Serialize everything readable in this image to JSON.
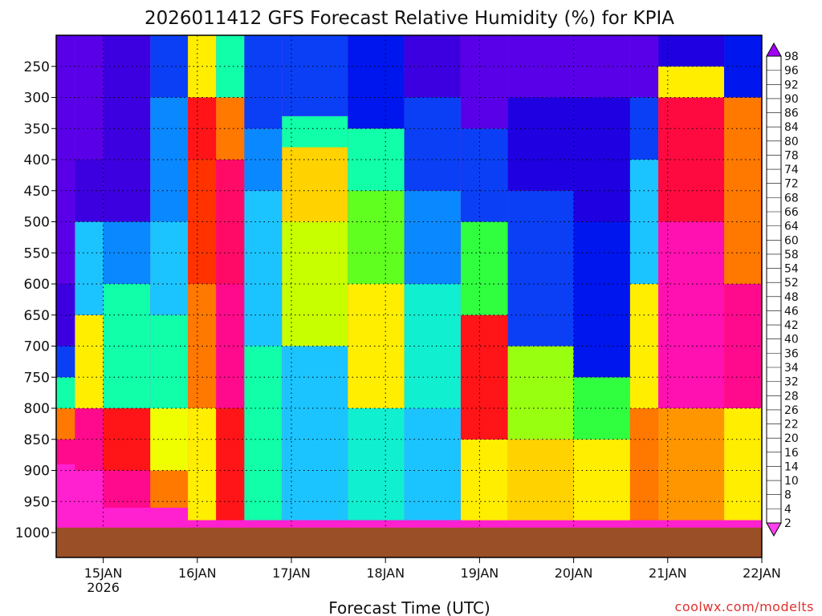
{
  "chart_data": {
    "type": "heatmap",
    "title": "2026011412 GFS Forecast Relative Humidity (%) for KPIA",
    "xlabel": "Forecast Time (UTC)",
    "ylabel": "",
    "credit": "coolwx.com/modelts",
    "x_ticks": [
      "15JAN",
      "16JAN",
      "17JAN",
      "18JAN",
      "19JAN",
      "20JAN",
      "21JAN",
      "22JAN"
    ],
    "x_subtick": "2026",
    "y_ticks": [
      "250",
      "300",
      "350",
      "400",
      "450",
      "500",
      "550",
      "600",
      "650",
      "700",
      "750",
      "800",
      "850",
      "900",
      "950",
      "1000"
    ],
    "y_values_hpa": [
      250,
      300,
      350,
      400,
      450,
      500,
      550,
      600,
      650,
      700,
      750,
      800,
      850,
      900,
      950,
      1000
    ],
    "yrange_hpa": [
      200,
      1040
    ],
    "xrange_days": [
      14.5,
      22.0
    ],
    "ground_color": "#9b4f26",
    "grid": "dotted",
    "colorbar_labels": [
      "98",
      "96",
      "92",
      "90",
      "86",
      "84",
      "80",
      "78",
      "74",
      "72",
      "68",
      "66",
      "64",
      "60",
      "58",
      "54",
      "52",
      "48",
      "46",
      "42",
      "40",
      "36",
      "34",
      "32",
      "28",
      "26",
      "22",
      "20",
      "16",
      "14",
      "10",
      "8",
      "4",
      "2"
    ],
    "colorbar_colors": [
      "#a300f8",
      "#7d00f0",
      "#5a00e8",
      "#3c00e0",
      "#1e00e0",
      "#0016ef",
      "#0a3ff5",
      "#0066ff",
      "#0a88ff",
      "#1aa6ff",
      "#1cc4ff",
      "#15dcf0",
      "#10f0d0",
      "#10ffa8",
      "#20ff70",
      "#30ff40",
      "#60ff20",
      "#98ff10",
      "#c8ff00",
      "#f0ff00",
      "#ffee00",
      "#ffd200",
      "#ffb400",
      "#ff9600",
      "#ff7800",
      "#ff5a00",
      "#ff3200",
      "#ff1418",
      "#ff0a40",
      "#ff0a66",
      "#ff0a8c",
      "#ff10b0",
      "#ff20d0",
      "#ff40f0"
    ],
    "rh_bands": [
      {
        "x0": 14.5,
        "x1": 14.7,
        "p": [
          [
            960,
            4
          ],
          [
            890,
            10
          ],
          [
            850,
            30
          ],
          [
            800,
            60
          ],
          [
            750,
            80
          ],
          [
            700,
            90
          ],
          [
            600,
            95
          ]
        ]
      },
      {
        "x0": 14.7,
        "x1": 15.0,
        "p": [
          [
            960,
            5
          ],
          [
            900,
            12
          ],
          [
            800,
            40
          ],
          [
            650,
            70
          ],
          [
            500,
            90
          ],
          [
            400,
            95
          ]
        ]
      },
      {
        "x0": 15.0,
        "x1": 15.5,
        "p": [
          [
            960,
            12
          ],
          [
            900,
            20
          ],
          [
            800,
            60
          ],
          [
            600,
            75
          ],
          [
            500,
            90
          ]
        ]
      },
      {
        "x0": 15.5,
        "x1": 15.9,
        "p": [
          [
            960,
            30
          ],
          [
            900,
            45
          ],
          [
            800,
            60
          ],
          [
            650,
            70
          ],
          [
            500,
            74
          ],
          [
            300,
            80
          ]
        ]
      },
      {
        "x0": 15.9,
        "x1": 16.2,
        "p": [
          [
            980,
            40
          ],
          [
            800,
            30
          ],
          [
            600,
            22
          ],
          [
            400,
            20
          ],
          [
            300,
            40
          ]
        ]
      },
      {
        "x0": 16.2,
        "x1": 16.5,
        "p": [
          [
            980,
            20
          ],
          [
            800,
            10
          ],
          [
            600,
            14
          ],
          [
            400,
            30
          ],
          [
            300,
            60
          ]
        ]
      },
      {
        "x0": 16.5,
        "x1": 16.9,
        "p": [
          [
            980,
            60
          ],
          [
            700,
            70
          ],
          [
            450,
            75
          ],
          [
            350,
            80
          ]
        ]
      },
      {
        "x0": 16.9,
        "x1": 17.6,
        "p": [
          [
            980,
            70
          ],
          [
            700,
            46
          ],
          [
            500,
            36
          ],
          [
            380,
            60
          ],
          [
            330,
            80
          ]
        ]
      },
      {
        "x0": 17.6,
        "x1": 18.2,
        "p": [
          [
            980,
            64
          ],
          [
            800,
            40
          ],
          [
            600,
            52
          ],
          [
            450,
            62
          ],
          [
            350,
            85
          ]
        ]
      },
      {
        "x0": 18.2,
        "x1": 18.8,
        "p": [
          [
            980,
            70
          ],
          [
            800,
            64
          ],
          [
            600,
            75
          ],
          [
            450,
            80
          ],
          [
            300,
            90
          ]
        ]
      },
      {
        "x0": 18.8,
        "x1": 19.3,
        "p": [
          [
            980,
            40
          ],
          [
            850,
            20
          ],
          [
            650,
            54
          ],
          [
            500,
            80
          ],
          [
            350,
            92
          ]
        ]
      },
      {
        "x0": 19.3,
        "x1": 20.0,
        "p": [
          [
            980,
            36
          ],
          [
            850,
            48
          ],
          [
            700,
            80
          ],
          [
            450,
            86
          ],
          [
            300,
            95
          ]
        ]
      },
      {
        "x0": 20.0,
        "x1": 20.6,
        "p": [
          [
            980,
            40
          ],
          [
            850,
            54
          ],
          [
            750,
            84
          ],
          [
            500,
            88
          ],
          [
            300,
            95
          ]
        ]
      },
      {
        "x0": 20.6,
        "x1": 20.9,
        "p": [
          [
            980,
            30
          ],
          [
            800,
            40
          ],
          [
            600,
            70
          ],
          [
            400,
            80
          ],
          [
            300,
            92
          ]
        ]
      },
      {
        "x0": 20.9,
        "x1": 21.6,
        "p": [
          [
            980,
            32
          ],
          [
            800,
            8
          ],
          [
            500,
            16
          ],
          [
            300,
            40
          ],
          [
            250,
            86
          ]
        ]
      },
      {
        "x0": 21.6,
        "x1": 22.0,
        "p": [
          [
            980,
            40
          ],
          [
            800,
            12
          ],
          [
            600,
            30
          ],
          [
            300,
            85
          ]
        ]
      }
    ]
  }
}
